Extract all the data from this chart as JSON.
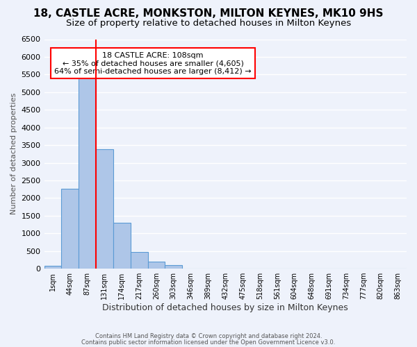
{
  "title": "18, CASTLE ACRE, MONKSTON, MILTON KEYNES, MK10 9HS",
  "subtitle": "Size of property relative to detached houses in Milton Keynes",
  "xlabel": "Distribution of detached houses by size in Milton Keynes",
  "ylabel": "Number of detached properties",
  "bin_labels": [
    "1sqm",
    "44sqm",
    "87sqm",
    "131sqm",
    "174sqm",
    "217sqm",
    "260sqm",
    "303sqm",
    "346sqm",
    "389sqm",
    "432sqm",
    "475sqm",
    "518sqm",
    "561sqm",
    "604sqm",
    "648sqm",
    "691sqm",
    "734sqm",
    "777sqm",
    "820sqm",
    "863sqm"
  ],
  "bar_values": [
    75,
    2270,
    5450,
    3380,
    1300,
    475,
    190,
    95,
    0,
    0,
    0,
    0,
    0,
    0,
    0,
    0,
    0,
    0,
    0,
    0,
    0
  ],
  "bar_color": "#aec6e8",
  "bar_edge_color": "#5b9bd5",
  "vline_color": "red",
  "vline_position": 2.5,
  "annotation_title": "18 CASTLE ACRE: 108sqm",
  "annotation_line1": "← 35% of detached houses are smaller (4,605)",
  "annotation_line2": "64% of semi-detached houses are larger (8,412) →",
  "annotation_box_color": "white",
  "annotation_box_edge_color": "red",
  "ylim": [
    0,
    6500
  ],
  "yticks": [
    0,
    500,
    1000,
    1500,
    2000,
    2500,
    3000,
    3500,
    4000,
    4500,
    5000,
    5500,
    6000,
    6500
  ],
  "footer1": "Contains HM Land Registry data © Crown copyright and database right 2024.",
  "footer2": "Contains public sector information licensed under the Open Government Licence v3.0.",
  "bg_color": "#eef2fb",
  "grid_color": "#ffffff",
  "title_fontsize": 11,
  "subtitle_fontsize": 9.5
}
